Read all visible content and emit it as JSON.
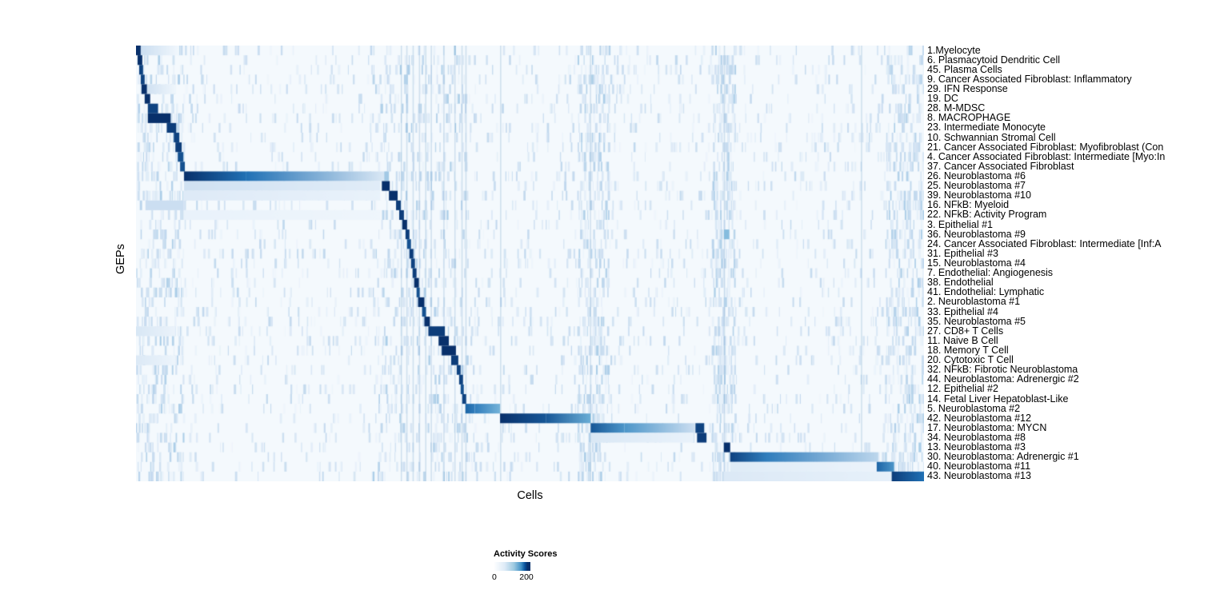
{
  "chart_data": {
    "type": "heatmap",
    "title": "",
    "xlabel": "Cells",
    "ylabel": "GEPs",
    "colormap": {
      "name": "Blues",
      "min_color": "#f7fbff",
      "max_color": "#08306b"
    },
    "legend": {
      "title": "Activity Scores",
      "min": 0,
      "max": 200,
      "min_label": "0",
      "max_label": "200"
    },
    "n_rows": 45,
    "rows": [
      {
        "label": "1.Myelocyte",
        "segments": [
          [
            0.0,
            0.006,
            200,
            200
          ],
          [
            0.006,
            0.055,
            45,
            5
          ]
        ]
      },
      {
        "label": "6. Plasmacytoid Dendritic Cell",
        "segments": [
          [
            0.002,
            0.008,
            200,
            200
          ]
        ]
      },
      {
        "label": "45. Plasma Cells",
        "segments": [
          [
            0.004,
            0.009,
            185,
            185
          ]
        ]
      },
      {
        "label": "9. Cancer Associated Fibroblast: Inflammatory",
        "segments": [
          [
            0.006,
            0.011,
            185,
            185
          ],
          [
            0.34,
            0.345,
            60,
            60
          ]
        ]
      },
      {
        "label": "29. IFN Response",
        "segments": [
          [
            0.007,
            0.014,
            200,
            200
          ],
          [
            0.014,
            0.05,
            40,
            8
          ]
        ]
      },
      {
        "label": "19. DC",
        "segments": [
          [
            0.011,
            0.018,
            200,
            200
          ]
        ]
      },
      {
        "label": "28. M-MDSC",
        "segments": [
          [
            0.015,
            0.028,
            185,
            185
          ]
        ]
      },
      {
        "label": "8. MACROPHAGE",
        "segments": [
          [
            0.015,
            0.044,
            200,
            200
          ]
        ]
      },
      {
        "label": "23. Intermediate Monocyte",
        "segments": [
          [
            0.039,
            0.051,
            190,
            190
          ]
        ]
      },
      {
        "label": "10. Schwannian Stromal Cell",
        "segments": [
          [
            0.048,
            0.055,
            185,
            185
          ]
        ]
      },
      {
        "label": "21. Cancer Associated Fibroblast: Myofibroblast (Con",
        "segments": [
          [
            0.05,
            0.058,
            190,
            190
          ]
        ]
      },
      {
        "label": "4. Cancer Associated Fibroblast: Intermediate [Myo:In",
        "segments": [
          [
            0.053,
            0.06,
            175,
            175
          ]
        ]
      },
      {
        "label": "37. Cancer Associated Fibroblast",
        "segments": [
          [
            0.056,
            0.062,
            175,
            175
          ]
        ]
      },
      {
        "label": "26. Neuroblastoma #6",
        "segments": [
          [
            0.061,
            0.14,
            200,
            150
          ],
          [
            0.14,
            0.315,
            150,
            30
          ],
          [
            0.315,
            0.321,
            70,
            70
          ]
        ]
      },
      {
        "label": "25. Neuroblastoma #7",
        "segments": [
          [
            0.061,
            0.31,
            40,
            22
          ],
          [
            0.312,
            0.322,
            200,
            200
          ]
        ]
      },
      {
        "label": "39. Neuroblastoma #10",
        "segments": [
          [
            0.061,
            0.31,
            26,
            14
          ],
          [
            0.321,
            0.332,
            200,
            200
          ]
        ]
      },
      {
        "label": "16. NFkB: Myeloid",
        "segments": [
          [
            0.012,
            0.06,
            45,
            45
          ],
          [
            0.33,
            0.336,
            190,
            190
          ]
        ]
      },
      {
        "label": "22. NFkB: Activity Program",
        "segments": [
          [
            0.061,
            0.31,
            14,
            8
          ],
          [
            0.334,
            0.34,
            190,
            190
          ]
        ]
      },
      {
        "label": "3. Epithelial #1",
        "segments": [
          [
            0.338,
            0.344,
            200,
            200
          ]
        ]
      },
      {
        "label": "36. Neuroblastoma #9",
        "segments": [
          [
            0.342,
            0.347,
            190,
            190
          ],
          [
            0.746,
            0.753,
            85,
            85
          ]
        ]
      },
      {
        "label": "24. Cancer Associated Fibroblast: Intermediate [Inf:A",
        "segments": [
          [
            0.344,
            0.349,
            175,
            175
          ]
        ]
      },
      {
        "label": "31. Epithelial #3",
        "segments": [
          [
            0.347,
            0.352,
            190,
            190
          ]
        ]
      },
      {
        "label": "15. Neuroblastoma #4",
        "segments": [
          [
            0.349,
            0.354,
            185,
            185
          ]
        ]
      },
      {
        "label": "7. Endothelial: Angiogenesis",
        "segments": [
          [
            0.351,
            0.356,
            190,
            190
          ]
        ]
      },
      {
        "label": "38. Endothelial",
        "segments": [
          [
            0.353,
            0.359,
            200,
            200
          ]
        ]
      },
      {
        "label": "41. Endothelial: Lymphatic",
        "segments": [
          [
            0.356,
            0.36,
            175,
            175
          ]
        ]
      },
      {
        "label": "2. Neuroblastoma #1",
        "segments": [
          [
            0.358,
            0.366,
            200,
            200
          ],
          [
            0.746,
            0.75,
            60,
            60
          ]
        ]
      },
      {
        "label": "33. Epithelial #4",
        "segments": [
          [
            0.363,
            0.368,
            175,
            175
          ]
        ]
      },
      {
        "label": "35. Neuroblastoma #5",
        "segments": [
          [
            0.366,
            0.373,
            200,
            200
          ]
        ]
      },
      {
        "label": "27. CD8+ T Cells",
        "segments": [
          [
            0.0,
            0.05,
            32,
            12
          ],
          [
            0.371,
            0.392,
            190,
            190
          ]
        ]
      },
      {
        "label": "11. Naive B Cell",
        "segments": [
          [
            0.384,
            0.397,
            200,
            200
          ]
        ]
      },
      {
        "label": "18. Memory T Cell",
        "segments": [
          [
            0.388,
            0.406,
            200,
            200
          ]
        ]
      },
      {
        "label": "20. Cytotoxic T Cell",
        "segments": [
          [
            0.0,
            0.05,
            28,
            10
          ],
          [
            0.4,
            0.409,
            190,
            190
          ]
        ]
      },
      {
        "label": "32. NFkB: Fibrotic Neuroblastoma",
        "segments": [
          [
            0.407,
            0.412,
            185,
            185
          ]
        ]
      },
      {
        "label": "44. Neuroblastoma: Adrenergic #2",
        "segments": [
          [
            0.41,
            0.415,
            185,
            185
          ]
        ]
      },
      {
        "label": "12. Epithelial #2",
        "segments": [
          [
            0.412,
            0.416,
            175,
            175
          ]
        ]
      },
      {
        "label": "14. Fetal Liver Hepatoblast-Like",
        "segments": [
          [
            0.414,
            0.419,
            185,
            185
          ]
        ]
      },
      {
        "label": "5. Neuroblastoma #2",
        "segments": [
          [
            0.418,
            0.43,
            160,
            140
          ],
          [
            0.43,
            0.462,
            140,
            95
          ]
        ]
      },
      {
        "label": "42. Neuroblastoma #12",
        "segments": [
          [
            0.462,
            0.52,
            200,
            170
          ],
          [
            0.52,
            0.577,
            170,
            100
          ]
        ]
      },
      {
        "label": "17. Neuroblastoma: MYCN",
        "segments": [
          [
            0.577,
            0.62,
            170,
            120
          ],
          [
            0.62,
            0.709,
            120,
            45
          ],
          [
            0.71,
            0.721,
            185,
            185
          ]
        ]
      },
      {
        "label": "34. Neuroblastoma #8",
        "segments": [
          [
            0.577,
            0.708,
            30,
            14
          ],
          [
            0.712,
            0.724,
            190,
            190
          ]
        ]
      },
      {
        "label": "13. Neuroblastoma #3",
        "segments": [
          [
            0.746,
            0.754,
            200,
            200
          ]
        ]
      },
      {
        "label": "30. Neuroblastoma: Adrenergic #1",
        "segments": [
          [
            0.754,
            0.8,
            185,
            140
          ],
          [
            0.8,
            0.942,
            140,
            55
          ]
        ]
      },
      {
        "label": "40. Neuroblastoma #11",
        "segments": [
          [
            0.754,
            0.94,
            24,
            12
          ],
          [
            0.94,
            0.962,
            160,
            120
          ]
        ]
      },
      {
        "label": "43. Neuroblastoma #13",
        "segments": [
          [
            0.746,
            0.959,
            28,
            16
          ],
          [
            0.959,
            1.0,
            190,
            150
          ]
        ]
      }
    ],
    "background_column_streaks": [
      0.336,
      0.343,
      0.351,
      0.359,
      0.367,
      0.374,
      0.39,
      0.404,
      0.413,
      0.418,
      0.462,
      0.576,
      0.746,
      0.92
    ]
  }
}
